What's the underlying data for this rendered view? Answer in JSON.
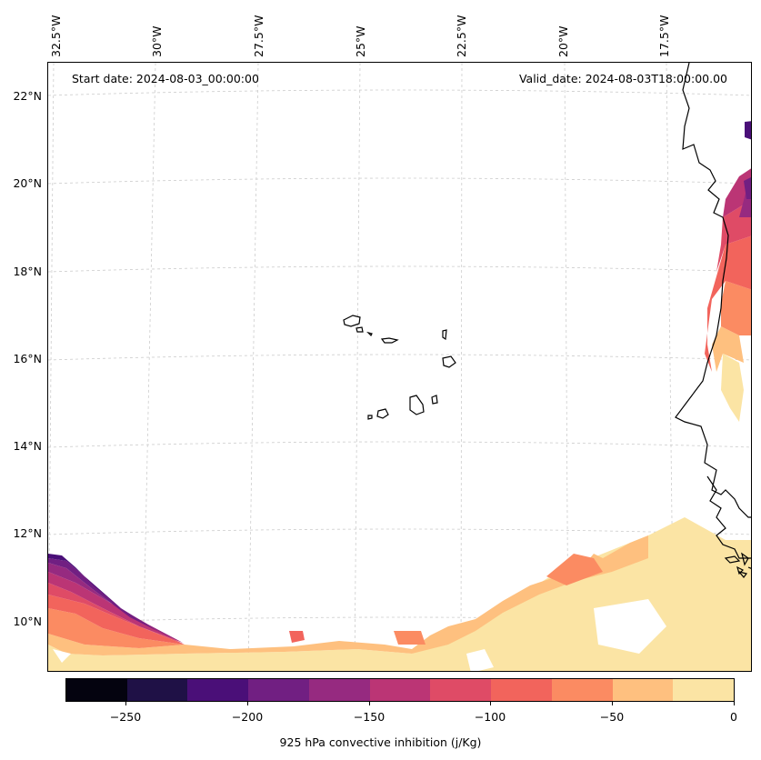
{
  "header": {
    "start_date": "Start date: 2024-08-03_00:00:00",
    "valid_date": "Valid_date: 2024-08-03T18:00:00.00"
  },
  "axes": {
    "longitude_labels": [
      "32.5°W",
      "30°W",
      "27.5°W",
      "25°W",
      "22.5°W",
      "20°W",
      "17.5°W"
    ],
    "latitude_labels": [
      "22°N",
      "20°N",
      "18°N",
      "16°N",
      "14°N",
      "12°N",
      "10°N"
    ]
  },
  "colorbar": {
    "title": "925 hPa convective inhibition (j/Kg)",
    "tick_labels": [
      "−250",
      "−200",
      "−150",
      "−100",
      "−50",
      "0"
    ],
    "levels": [
      -275,
      -250,
      -225,
      -200,
      -175,
      -150,
      -125,
      -100,
      -75,
      -50,
      -25,
      0
    ],
    "colors": [
      "#04030f",
      "#1f1146",
      "#4a0f78",
      "#711f82",
      "#962a80",
      "#bb3575",
      "#df4b66",
      "#f2645c",
      "#fb8b62",
      "#fec07f",
      "#fbe4a4"
    ]
  },
  "colors": {
    "coastline": "#000000",
    "gridline": "#cccccc"
  }
}
